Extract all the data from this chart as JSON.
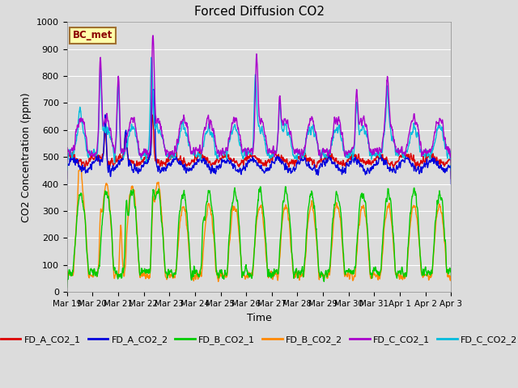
{
  "title": "Forced Diffusion CO2",
  "xlabel": "Time",
  "ylabel": "CO2 Concentration (ppm)",
  "ylim": [
    0,
    1000
  ],
  "yticks": [
    0,
    100,
    200,
    300,
    400,
    500,
    600,
    700,
    800,
    900,
    1000
  ],
  "plot_bg_color": "#dcdcdc",
  "fig_bg_color": "#dcdcdc",
  "grid_color": "#ffffff",
  "annotation_text": "BC_met",
  "annotation_bg": "#ffffaa",
  "annotation_border": "#a07030",
  "series": {
    "FD_A_CO2_1": {
      "color": "#dd0000",
      "lw": 1.0
    },
    "FD_A_CO2_2": {
      "color": "#0000dd",
      "lw": 1.0
    },
    "FD_B_CO2_1": {
      "color": "#00cc00",
      "lw": 1.0
    },
    "FD_B_CO2_2": {
      "color": "#ff8800",
      "lw": 1.0
    },
    "FD_C_CO2_1": {
      "color": "#aa00cc",
      "lw": 1.0
    },
    "FD_C_CO2_2": {
      "color": "#00bbdd",
      "lw": 1.0
    }
  },
  "x_tick_labels": [
    "Mar 19",
    "Mar 20",
    "Mar 21",
    "Mar 22",
    "Mar 23",
    "Mar 24",
    "Mar 25",
    "Mar 26",
    "Mar 27",
    "Mar 28",
    "Mar 29",
    "Mar 30",
    "Mar 31",
    "Apr 1",
    "Apr 2",
    "Apr 3"
  ],
  "n_days": 15
}
